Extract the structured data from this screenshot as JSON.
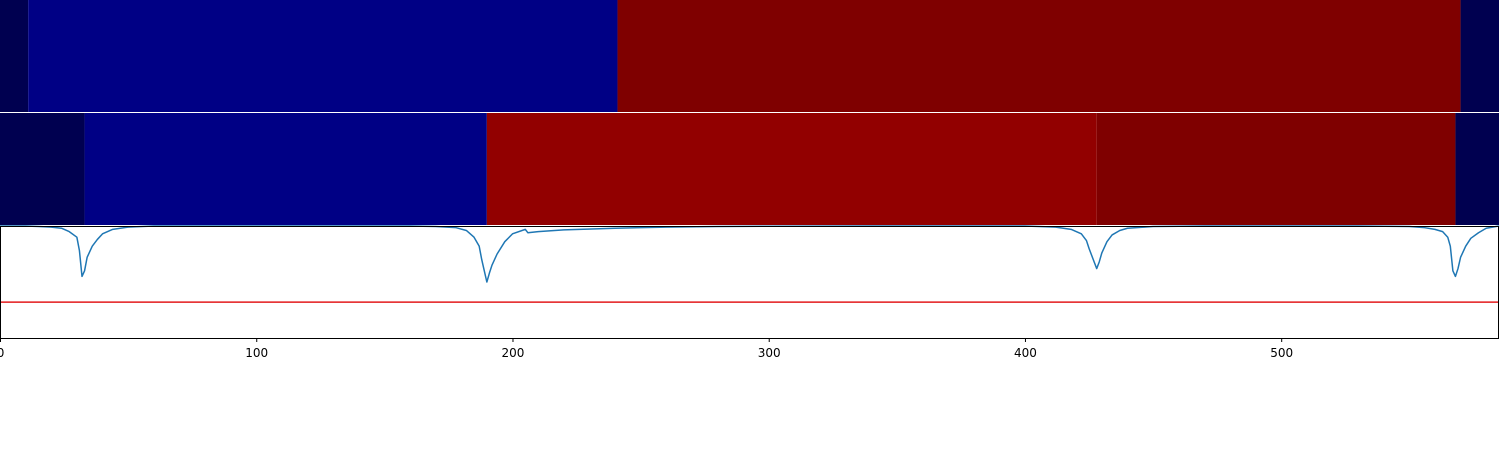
{
  "colors": {
    "line": "#1f77b4",
    "threshold": "#e31a1c",
    "axis": "#000000",
    "background": "#ffffff"
  },
  "chart_data": [
    {
      "type": "heatmap",
      "title": "",
      "xlim": [
        0,
        585
      ],
      "segments": [
        {
          "start": 0,
          "end": 11,
          "color": "#000050"
        },
        {
          "start": 11,
          "end": 241,
          "color": "#000085"
        },
        {
          "start": 241,
          "end": 570,
          "color": "#7f0000"
        },
        {
          "start": 570,
          "end": 585,
          "color": "#000050"
        }
      ]
    },
    {
      "type": "heatmap",
      "title": "",
      "xlim": [
        0,
        585
      ],
      "segments": [
        {
          "start": 0,
          "end": 33,
          "color": "#000050"
        },
        {
          "start": 33,
          "end": 190,
          "color": "#000085"
        },
        {
          "start": 190,
          "end": 428,
          "color": "#920000"
        },
        {
          "start": 428,
          "end": 568,
          "color": "#7f0000"
        },
        {
          "start": 568,
          "end": 585,
          "color": "#000050"
        }
      ]
    },
    {
      "type": "line",
      "title": "",
      "xlabel": "",
      "ylabel": "",
      "xlim": [
        0,
        585
      ],
      "ylim": [
        0,
        1
      ],
      "grid": false,
      "threshold": 0.32,
      "xticks": [
        0,
        100,
        200,
        300,
        400,
        500
      ],
      "xtick_labels": [
        "0",
        "100",
        "200",
        "300",
        "400",
        "500"
      ],
      "series": [
        {
          "x": [
            0,
            5,
            10,
            15,
            20,
            24,
            27,
            30,
            31,
            32,
            33,
            34,
            36,
            38,
            40,
            44,
            50,
            60,
            80,
            100,
            120,
            140,
            160,
            170,
            178,
            182,
            185,
            187,
            188,
            189,
            190,
            191,
            192,
            194,
            197,
            200,
            205,
            206,
            210,
            220,
            240,
            260,
            280,
            300,
            340,
            380,
            400,
            412,
            418,
            422,
            424,
            425,
            426,
            427,
            428,
            429,
            430,
            432,
            434,
            437,
            440,
            450,
            470,
            500,
            530,
            550,
            556,
            560,
            563,
            565,
            566,
            567,
            568,
            569,
            570,
            572,
            574,
            577,
            580,
            585
          ],
          "y": [
            1,
            1,
            1,
            0.995,
            0.99,
            0.98,
            0.95,
            0.9,
            0.78,
            0.55,
            0.6,
            0.72,
            0.82,
            0.88,
            0.93,
            0.97,
            0.99,
            1,
            1,
            1,
            1,
            1,
            1,
            0.995,
            0.985,
            0.96,
            0.9,
            0.82,
            0.7,
            0.6,
            0.5,
            0.58,
            0.65,
            0.75,
            0.86,
            0.93,
            0.97,
            0.94,
            0.95,
            0.965,
            0.98,
            0.99,
            0.995,
            0.998,
            1,
            1,
            1,
            0.99,
            0.97,
            0.93,
            0.87,
            0.8,
            0.74,
            0.68,
            0.62,
            0.68,
            0.76,
            0.86,
            0.92,
            0.96,
            0.98,
            0.995,
            1,
            1,
            1,
            0.995,
            0.985,
            0.97,
            0.95,
            0.9,
            0.82,
            0.6,
            0.55,
            0.62,
            0.72,
            0.82,
            0.89,
            0.94,
            0.98,
            1
          ]
        }
      ]
    }
  ]
}
